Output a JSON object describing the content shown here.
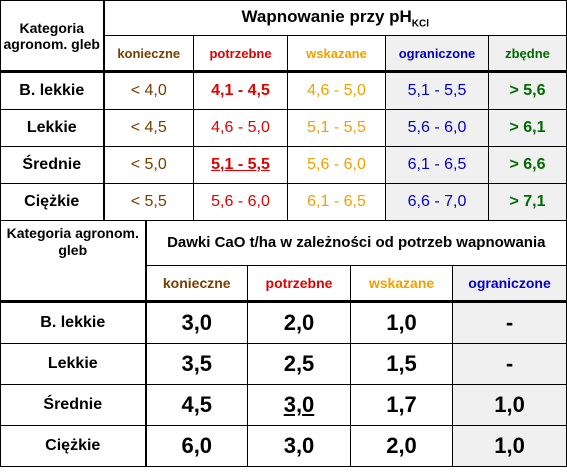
{
  "colors": {
    "konieczne": "#7a3d00",
    "potrzebne": "#e00000",
    "wskazane": "#f0a000",
    "ograniczone": "#0000c8",
    "zbedne": "#006a00",
    "shade": "#f0f0f0"
  },
  "table1": {
    "left_header": "Kategoria agronom. gleb",
    "title_main": "Wapnowanie  przy  pH",
    "title_sub": "KCl",
    "columns": [
      "konieczne",
      "potrzebne",
      "wskazane",
      "ograniczone",
      "zbędne"
    ],
    "rows": [
      {
        "label": "B.  lekkie",
        "values": [
          "<  4,0",
          "4,1 -  4,5",
          "4,6  -  5,0",
          "5,1 -  5,5",
          "> 5,6"
        ]
      },
      {
        "label": "Lekkie",
        "values": [
          "<  4,5",
          "4,6 -  5,0",
          "5,1  -  5,5",
          "5,6 -  6,0",
          "> 6,1"
        ]
      },
      {
        "label": "Średnie",
        "values": [
          "<  5,0",
          "5,1  -  5,5",
          "5,6  -  6,0",
          "6,1 -  6,5",
          "> 6,6"
        ]
      },
      {
        "label": "Ciężkie",
        "values": [
          "< 5,5",
          "5,6  -  6,0",
          "6,1  -  6,5",
          "6,6 -  7,0",
          "> 7,1"
        ]
      }
    ]
  },
  "table2": {
    "left_header": "Kategoria agronom. gleb",
    "title": "Dawki CaO t/ha w zależności od potrzeb wapnowania",
    "columns": [
      "konieczne",
      "potrzebne",
      "wskazane",
      "ograniczone"
    ],
    "rows": [
      {
        "label": "B.  lekkie",
        "values": [
          "3,0",
          "2,0",
          "1,0",
          "-"
        ]
      },
      {
        "label": "Lekkie",
        "values": [
          "3,5",
          "2,5",
          "1,5",
          "-"
        ]
      },
      {
        "label": "Średnie",
        "values": [
          "4,5",
          "3,0",
          "1,7",
          "1,0"
        ]
      },
      {
        "label": "Ciężkie",
        "values": [
          "6,0",
          "3,0",
          "2,0",
          "1,0"
        ]
      }
    ]
  }
}
